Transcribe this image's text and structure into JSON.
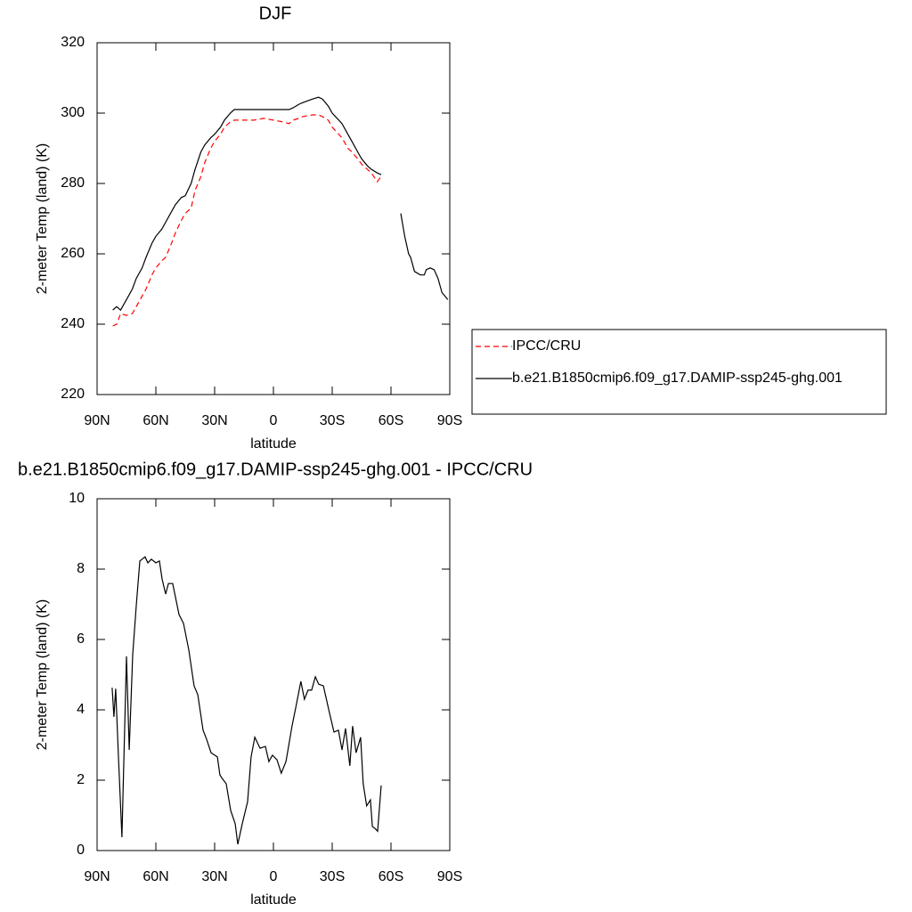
{
  "chart_data": [
    {
      "type": "line",
      "title": "DJF",
      "xlabel": "latitude",
      "ylabel": "2-meter Temp (land) (K)",
      "xlim": [
        90,
        -90
      ],
      "ylim": [
        220,
        320
      ],
      "xticks": [
        {
          "value": 90,
          "label": "90N"
        },
        {
          "value": 60,
          "label": "60N"
        },
        {
          "value": 30,
          "label": "30N"
        },
        0,
        {
          "value": -30,
          "label": "30S"
        },
        {
          "value": -60,
          "label": "60S"
        },
        {
          "value": -90,
          "label": "90S"
        }
      ],
      "yticks": [
        220,
        240,
        260,
        280,
        300,
        320
      ],
      "legend": "right",
      "x": [
        82,
        80,
        78,
        75,
        72,
        70,
        67,
        65,
        62,
        60,
        57,
        55,
        52,
        50,
        47,
        45,
        42,
        40,
        37,
        35,
        32,
        30,
        27,
        25,
        22,
        20,
        15,
        10,
        5,
        0,
        -5,
        -8,
        -10,
        -13,
        -15,
        -20,
        -23,
        -25,
        -28,
        -30,
        -35,
        -38,
        -40,
        -43,
        -45,
        -48,
        -50,
        -53,
        -55,
        -60,
        -65,
        -67,
        -69,
        -70,
        -72,
        -75,
        -77,
        -78,
        -80,
        -82,
        -84,
        -86,
        -89
      ],
      "series": [
        {
          "name": "IPCC/CRU",
          "color": "#ff0000",
          "dashed": true,
          "values": [
            239.5,
            240,
            243,
            242.5,
            243,
            245,
            248,
            250,
            254,
            256,
            258,
            259,
            263,
            266,
            269.5,
            271.5,
            273,
            278,
            282,
            286,
            290,
            292,
            294,
            296,
            297.5,
            298,
            298,
            298,
            298.5,
            298,
            297.5,
            297,
            298,
            298.5,
            299,
            299.5,
            299.5,
            299,
            298,
            296,
            293,
            290,
            289,
            287,
            285.5,
            284,
            283,
            280.5,
            282,
            null,
            null,
            null,
            null,
            null,
            null,
            null,
            null,
            null,
            null,
            null,
            null,
            null,
            null
          ]
        },
        {
          "name": "b.e21.B1850cmip6.f09_g17.DAMIP-ssp245-ghg.001",
          "color": "#000000",
          "dashed": false,
          "values": [
            244,
            245,
            244,
            247,
            250,
            253,
            256,
            259,
            263,
            265,
            267,
            269,
            272,
            274,
            276,
            276.5,
            280,
            284,
            289,
            291,
            293,
            294,
            296,
            298,
            300,
            301,
            301,
            301,
            301,
            301,
            301,
            301,
            301.5,
            302.5,
            303,
            304,
            304.5,
            304,
            302,
            300,
            297,
            294,
            292,
            289,
            287,
            285,
            284,
            283,
            282.5,
            null,
            271.5,
            265,
            260,
            259,
            255,
            254,
            254,
            255.5,
            256,
            255.5,
            253,
            249,
            247
          ]
        }
      ]
    },
    {
      "type": "line",
      "title": "b.e21.B1850cmip6.f09_g17.DAMIP-ssp245-ghg.001 - IPCC/CRU",
      "xlabel": "latitude",
      "ylabel": "2-meter Temp (land) (K)",
      "xlim": [
        90,
        -90
      ],
      "ylim": [
        0,
        10
      ],
      "xticks": [
        {
          "value": 90,
          "label": "90N"
        },
        {
          "value": 60,
          "label": "60N"
        },
        {
          "value": 30,
          "label": "30N"
        },
        0,
        {
          "value": -30,
          "label": "30S"
        },
        {
          "value": -60,
          "label": "60S"
        },
        {
          "value": -90,
          "label": "90S"
        }
      ],
      "yticks": [
        0,
        2,
        4,
        6,
        8,
        10
      ],
      "x": [
        82.3,
        81.4,
        80.5,
        79.1,
        77.3,
        75,
        73.6,
        71.8,
        70,
        68.2,
        65.5,
        64.1,
        62.3,
        60,
        58.2,
        56.8,
        55,
        53.6,
        51.4,
        48.2,
        45.9,
        43.2,
        40.5,
        38.6,
        35.9,
        34.1,
        31.8,
        28.6,
        27.3,
        25.9,
        24.1,
        21.8,
        19.5,
        18.2,
        15.9,
        13.2,
        11.4,
        9.5,
        6.8,
        4.1,
        2.3,
        0.5,
        -1.8,
        -4,
        -6.4,
        -9.5,
        -11.8,
        -14,
        -15.8,
        -17.7,
        -19.5,
        -21.4,
        -23.1,
        -25.5,
        -28.6,
        -30.9,
        -33.2,
        -35,
        -36.8,
        -39,
        -40.4,
        -42.2,
        -44.5,
        -45.8,
        -47.6,
        -49.5,
        -50.5,
        -51.8,
        -53.2,
        -55
      ],
      "series": [
        {
          "color": "#000000",
          "dashed": false,
          "values": [
            4.63,
            3.8,
            4.6,
            2.66,
            0.38,
            5.52,
            2.86,
            5.57,
            6.96,
            8.23,
            8.35,
            8.18,
            8.28,
            8.18,
            8.23,
            7.72,
            7.29,
            7.59,
            7.59,
            6.71,
            6.46,
            5.7,
            4.68,
            4.43,
            3.42,
            3.16,
            2.78,
            2.66,
            2.15,
            2.03,
            1.9,
            1.14,
            0.76,
            0.18,
            0.76,
            1.39,
            2.66,
            3.22,
            2.91,
            2.96,
            2.53,
            2.71,
            2.58,
            2.2,
            2.53,
            3.54,
            4.18,
            4.81,
            4.3,
            4.56,
            4.56,
            4.94,
            4.73,
            4.68,
            3.92,
            3.37,
            3.42,
            2.86,
            3.47,
            2.41,
            3.54,
            2.78,
            3.22,
            1.9,
            1.27,
            1.44,
            0.68,
            0.63,
            0.55,
            1.85
          ]
        }
      ]
    }
  ]
}
